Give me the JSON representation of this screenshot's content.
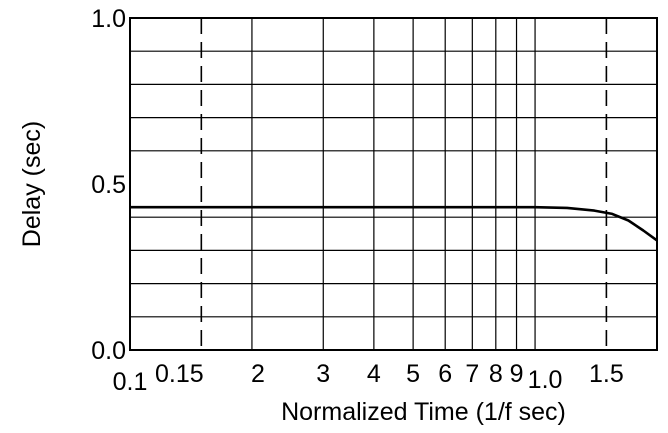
{
  "chart_data": {
    "type": "line",
    "xscale": "log",
    "xlim": [
      0.1,
      2.0
    ],
    "ylim": [
      0.0,
      1.0
    ],
    "xlabel": "Normalized Time (1/f sec)",
    "ylabel": "Delay (sec)",
    "grid": true,
    "x_ticks": [
      {
        "value": 0.1,
        "label": "0.1"
      },
      {
        "value": 0.15,
        "label": "0.15"
      },
      {
        "value": 0.2,
        "label": "2"
      },
      {
        "value": 0.3,
        "label": "3"
      },
      {
        "value": 0.4,
        "label": "4"
      },
      {
        "value": 0.5,
        "label": "5"
      },
      {
        "value": 0.6,
        "label": "6"
      },
      {
        "value": 0.7,
        "label": "7"
      },
      {
        "value": 0.8,
        "label": "8"
      },
      {
        "value": 0.9,
        "label": "9"
      },
      {
        "value": 1.0,
        "label": "1.0"
      },
      {
        "value": 1.5,
        "label": "1.5"
      }
    ],
    "x_grid": [
      0.2,
      0.3,
      0.4,
      0.5,
      0.6,
      0.7,
      0.8,
      0.9,
      1.0
    ],
    "x_dashed": [
      0.15,
      1.5
    ],
    "y_ticks": [
      {
        "value": 0.0,
        "label": "0.0"
      },
      {
        "value": 0.5,
        "label": "0.5"
      },
      {
        "value": 1.0,
        "label": "1.0"
      }
    ],
    "y_grid": [
      0.1,
      0.2,
      0.3,
      0.4,
      0.6,
      0.7,
      0.8,
      0.9
    ],
    "series": [
      {
        "x": [
          0.1,
          0.2,
          0.4,
          0.6,
          0.8,
          1.0,
          1.2,
          1.4,
          1.55,
          1.7,
          1.85,
          2.0
        ],
        "y": [
          0.43,
          0.43,
          0.43,
          0.43,
          0.43,
          0.43,
          0.428,
          0.42,
          0.41,
          0.39,
          0.36,
          0.33
        ]
      }
    ]
  }
}
